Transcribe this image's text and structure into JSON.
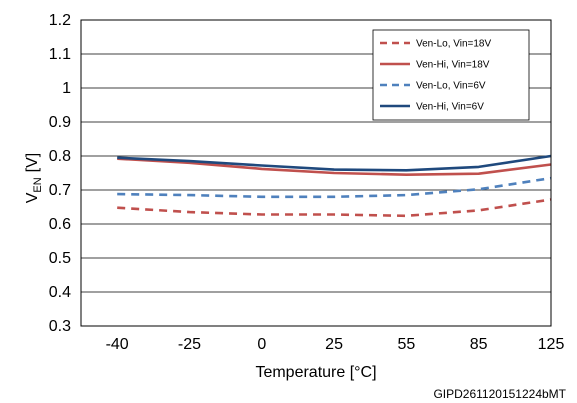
{
  "chart_data": {
    "type": "line",
    "xlabel": "Temperature [°C]",
    "ylabel_main": "V",
    "ylabel_sub": "EN",
    "ylabel_unit": "[V]",
    "categories": [
      "-40",
      "-25",
      "0",
      "25",
      "55",
      "85",
      "125"
    ],
    "ylim": [
      0.3,
      1.2
    ],
    "y_ticks": [
      "0.3",
      "0.4",
      "0.5",
      "0.6",
      "0.7",
      "0.8",
      "0.9",
      "1",
      "1.1",
      "1.2"
    ],
    "grid": true,
    "legend_position": "top-right",
    "series": [
      {
        "name": "Ven-Lo, Vin=18V",
        "color": "#c0504d",
        "dash": true,
        "values": [
          0.648,
          0.635,
          0.628,
          0.628,
          0.624,
          0.64,
          0.672
        ]
      },
      {
        "name": "Ven-Hi, Vin=18V",
        "color": "#c0504d",
        "dash": false,
        "values": [
          0.792,
          0.78,
          0.762,
          0.75,
          0.745,
          0.748,
          0.775
        ]
      },
      {
        "name": "Ven-Lo, Vin=6V",
        "color": "#4f81bd",
        "dash": true,
        "values": [
          0.688,
          0.685,
          0.68,
          0.68,
          0.685,
          0.702,
          0.735
        ]
      },
      {
        "name": "Ven-Hi, Vin=6V",
        "color": "#1f497d",
        "dash": false,
        "values": [
          0.795,
          0.785,
          0.772,
          0.76,
          0.758,
          0.768,
          0.8
        ]
      }
    ]
  },
  "figure_code": "GIPD261120151224bMT"
}
